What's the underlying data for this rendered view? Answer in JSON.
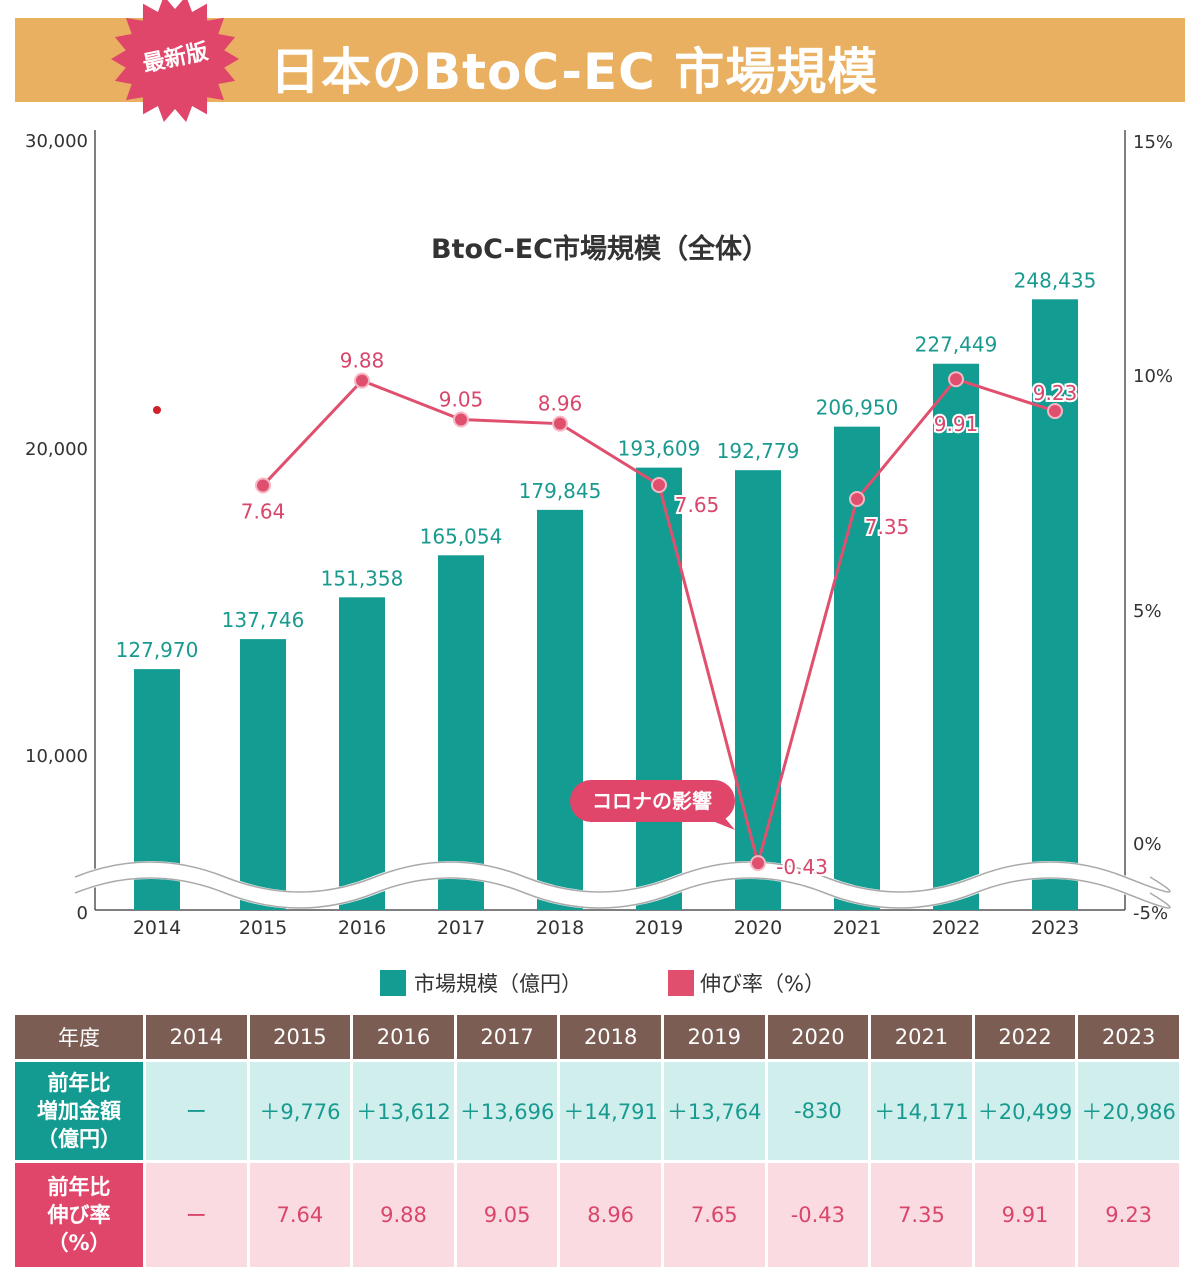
{
  "header": {
    "badge": "最新版",
    "title": "日本のBtoC-EC 市場規模"
  },
  "chart_data": {
    "type": "bar+line",
    "title": "BtoC-EC市場規模（全体）",
    "categories": [
      "2014",
      "2015",
      "2016",
      "2017",
      "2018",
      "2019",
      "2020",
      "2021",
      "2022",
      "2023"
    ],
    "left_axis_ticks": [
      "0",
      "10,000",
      "20,000",
      "30,000"
    ],
    "right_axis_ticks": [
      "-5%",
      "0%",
      "5%",
      "10%",
      "15%"
    ],
    "axis_break": true,
    "series": [
      {
        "name": "市場規模（億円）",
        "type": "bar",
        "color": "#129c92",
        "values": [
          127970,
          137746,
          151358,
          165054,
          179845,
          193609,
          192779,
          206950,
          227449,
          248435
        ],
        "labels": [
          "127,970",
          "137,746",
          "151,358",
          "165,054",
          "179,845",
          "193,609",
          "192,779",
          "206,950",
          "227,449",
          "248,435"
        ]
      },
      {
        "name": "伸び率（%）",
        "type": "line",
        "color": "#e0506e",
        "values": [
          null,
          7.64,
          9.88,
          9.05,
          8.96,
          7.65,
          -0.43,
          7.35,
          9.91,
          9.23
        ],
        "labels": [
          "",
          "7.64",
          "9.88",
          "9.05",
          "8.96",
          "7.65",
          "-0.43",
          "7.35",
          "9.91",
          "9.23"
        ]
      }
    ],
    "annotation": "コロナの影響",
    "legend": "bottom"
  },
  "table": {
    "header_label": "年度",
    "years": [
      "2014",
      "2015",
      "2016",
      "2017",
      "2018",
      "2019",
      "2020",
      "2021",
      "2022",
      "2023"
    ],
    "row_amount": {
      "label": [
        "前年比",
        "増加金額",
        "（億円）"
      ],
      "values": [
        "ー",
        "＋9,776",
        "＋13,612",
        "＋13,696",
        "＋14,791",
        "＋13,764",
        "-830",
        "＋14,171",
        "＋20,499",
        "＋20,986"
      ]
    },
    "row_rate": {
      "label": [
        "前年比",
        "伸び率",
        "（%）"
      ],
      "values": [
        "ー",
        "7.64",
        "9.88",
        "9.05",
        "8.96",
        "7.65",
        "-0.43",
        "7.35",
        "9.91",
        "9.23"
      ]
    }
  }
}
